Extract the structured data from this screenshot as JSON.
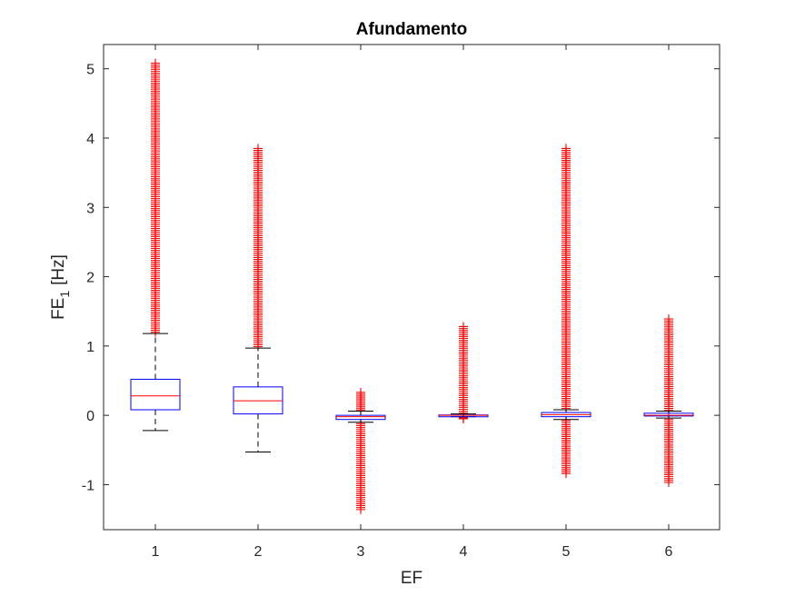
{
  "chart_data": {
    "type": "boxplot",
    "title": "Afundamento",
    "xlabel": "EF",
    "ylabel": {
      "base": "FE",
      "subscript": "1",
      "unit": "[Hz]"
    },
    "categories": [
      "1",
      "2",
      "3",
      "4",
      "5",
      "6"
    ],
    "y_ticks": [
      "-1",
      "0",
      "1",
      "2",
      "3",
      "4",
      "5"
    ],
    "ylim": [
      -1.65,
      5.35
    ],
    "grid": false,
    "colors": {
      "box": "#0000ff",
      "median": "#ff0000",
      "whisker": "#000000",
      "outlier": "#ff0000",
      "axis": "#262626"
    },
    "boxes": [
      {
        "category": "1",
        "q1": 0.08,
        "median": 0.28,
        "q3": 0.52,
        "whisker_low": -0.22,
        "whisker_high": 1.18,
        "outliers_high": {
          "from": 1.2,
          "to": 5.08
        },
        "outliers_low": null
      },
      {
        "category": "2",
        "q1": 0.02,
        "median": 0.21,
        "q3": 0.41,
        "whisker_low": -0.53,
        "whisker_high": 0.97,
        "outliers_high": {
          "from": 0.99,
          "to": 3.85
        },
        "outliers_low": null
      },
      {
        "category": "3",
        "q1": -0.06,
        "median": -0.02,
        "q3": 0.0,
        "whisker_low": -0.1,
        "whisker_high": 0.06,
        "outliers_high": {
          "from": 0.07,
          "to": 0.33
        },
        "outliers_low": {
          "from": -0.12,
          "to": -1.36
        }
      },
      {
        "category": "4",
        "q1": -0.005,
        "median": 0.0,
        "q3": 0.005,
        "whisker_low": -0.02,
        "whisker_high": 0.02,
        "outliers_high": {
          "from": 0.03,
          "to": 1.28
        },
        "outliers_low": {
          "from": -0.03,
          "to": -0.05
        }
      },
      {
        "category": "5",
        "q1": -0.02,
        "median": 0.01,
        "q3": 0.04,
        "whisker_low": -0.06,
        "whisker_high": 0.08,
        "outliers_high": {
          "from": 0.1,
          "to": 3.85
        },
        "outliers_low": {
          "from": -0.08,
          "to": -0.84
        }
      },
      {
        "category": "6",
        "q1": -0.01,
        "median": 0.0,
        "q3": 0.03,
        "whisker_low": -0.04,
        "whisker_high": 0.06,
        "outliers_high": {
          "from": 0.07,
          "to": 1.39
        },
        "outliers_low": {
          "from": -0.06,
          "to": -0.97
        }
      }
    ]
  }
}
